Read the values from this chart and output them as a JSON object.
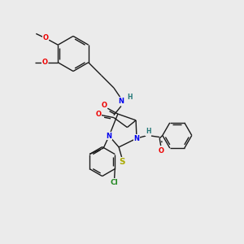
{
  "bg_color": "#ebebeb",
  "bond_color": "#1a1a1a",
  "atom_colors": {
    "N": "#0000ee",
    "O": "#ee0000",
    "S": "#aaaa00",
    "Cl": "#228822",
    "C": "#1a1a1a",
    "H": "#227777"
  },
  "figsize": [
    3.0,
    3.0
  ],
  "dpi": 100
}
